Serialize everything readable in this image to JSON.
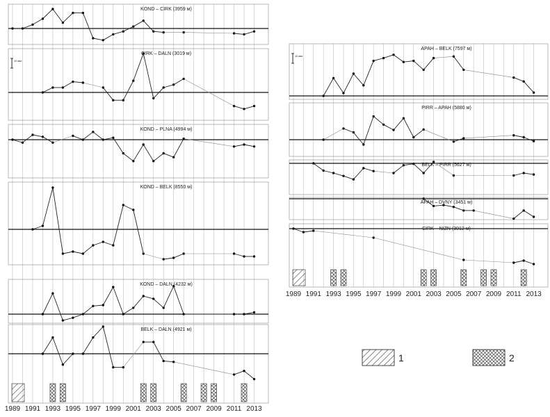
{
  "chart_data": {
    "type": "line",
    "scale_label": "10 мм",
    "left_panels": [
      {
        "title": "KOND – CIRK (3959 м)",
        "values": [
          [
            1989,
            0
          ],
          [
            1990,
            0
          ],
          [
            1991,
            0.4
          ],
          [
            1992,
            1
          ],
          [
            1993,
            2
          ],
          [
            1994,
            0.6
          ],
          [
            1995,
            1.6
          ],
          [
            1996,
            1.6
          ],
          [
            1997,
            -1
          ],
          [
            1998,
            -1.2
          ],
          [
            1999,
            -0.6
          ],
          [
            2000,
            -0.3
          ],
          [
            2001,
            0.2
          ],
          [
            2002,
            0.8
          ],
          [
            2003,
            -0.3
          ],
          [
            2004,
            -0.4
          ],
          [
            2006,
            -0.4
          ],
          [
            2011,
            -0.5
          ],
          [
            2012,
            -0.6
          ],
          [
            2013,
            -0.3
          ]
        ]
      },
      {
        "title": "CIRK – DALN (3019 м)",
        "values": [
          [
            1992,
            0
          ],
          [
            1993,
            0.5
          ],
          [
            1994,
            0.5
          ],
          [
            1995,
            1.1
          ],
          [
            1996,
            1
          ],
          [
            1998,
            0.5
          ],
          [
            1999,
            -0.8
          ],
          [
            2000,
            -0.8
          ],
          [
            2001,
            1.2
          ],
          [
            2002,
            4
          ],
          [
            2003,
            -0.6
          ],
          [
            2004,
            0.5
          ],
          [
            2005,
            0.8
          ],
          [
            2006,
            1.4
          ],
          [
            2011,
            -1.4
          ],
          [
            2012,
            -1.7
          ],
          [
            2013,
            -1.4
          ]
        ]
      },
      {
        "title": "KOND – PLNA (4994 м)",
        "values": [
          [
            1989,
            0
          ],
          [
            1990,
            -0.3
          ],
          [
            1991,
            0.5
          ],
          [
            1992,
            0.3
          ],
          [
            1993,
            -0.3
          ],
          [
            1995,
            0.4
          ],
          [
            1996,
            0
          ],
          [
            1997,
            0.8
          ],
          [
            1998,
            0
          ],
          [
            1999,
            0.2
          ],
          [
            2000,
            -1.4
          ],
          [
            2001,
            -2.2
          ],
          [
            2002,
            -0.5
          ],
          [
            2003,
            -2.2
          ],
          [
            2004,
            -1.4
          ],
          [
            2005,
            -1.8
          ],
          [
            2006,
            0.1
          ],
          [
            2011,
            -0.7
          ],
          [
            2012,
            -0.5
          ],
          [
            2013,
            -0.7
          ]
        ]
      },
      {
        "title": "KOND – BELK (8550 м)",
        "values": [
          [
            1991,
            0
          ],
          [
            1992,
            0.5
          ],
          [
            1993,
            6
          ],
          [
            1994,
            -3.5
          ],
          [
            1995,
            -3.2
          ],
          [
            1996,
            -3.5
          ],
          [
            1997,
            -2.3
          ],
          [
            1998,
            -1.8
          ],
          [
            1999,
            -2.3
          ],
          [
            2000,
            3.5
          ],
          [
            2001,
            2.8
          ],
          [
            2002,
            -3.5
          ],
          [
            2004,
            -4.3
          ],
          [
            2005,
            -4.1
          ],
          [
            2006,
            -3.5
          ],
          [
            2011,
            -3.5
          ],
          [
            2012,
            -3.9
          ],
          [
            2013,
            -3.9
          ]
        ]
      },
      {
        "title": "KOND – DALN (4232 м)",
        "values": [
          [
            1992,
            0
          ],
          [
            1993,
            2.3
          ],
          [
            1994,
            -0.7
          ],
          [
            1995,
            -0.4
          ],
          [
            1996,
            0
          ],
          [
            1997,
            0.9
          ],
          [
            1998,
            1
          ],
          [
            1999,
            3
          ],
          [
            2000,
            0
          ],
          [
            2001,
            0.7
          ],
          [
            2002,
            2
          ],
          [
            2003,
            1.7
          ],
          [
            2004,
            0.7
          ],
          [
            2005,
            3.1
          ],
          [
            2006,
            0
          ],
          [
            2011,
            0
          ],
          [
            2012,
            0
          ],
          [
            2013,
            0.2
          ]
        ]
      },
      {
        "title": "BELK – DALN (4921 м)",
        "values": [
          [
            1992,
            0
          ],
          [
            1993,
            1.8
          ],
          [
            1994,
            -1.2
          ],
          [
            1995,
            0
          ],
          [
            1996,
            0
          ],
          [
            1997,
            1.8
          ],
          [
            1998,
            3
          ],
          [
            1999,
            -1.5
          ],
          [
            2000,
            -1.5
          ],
          [
            2002,
            1.3
          ],
          [
            2003,
            1.3
          ],
          [
            2004,
            -0.8
          ],
          [
            2005,
            -0.9
          ],
          [
            2011,
            -2.3
          ],
          [
            2012,
            -1.9
          ],
          [
            2013,
            -2.8
          ]
        ]
      }
    ],
    "right_panels": [
      {
        "title": "APAH – BELK (7597 м)",
        "values": [
          [
            1992,
            0
          ],
          [
            1993,
            3.2
          ],
          [
            1994,
            0.5
          ],
          [
            1995,
            4
          ],
          [
            1996,
            1.9
          ],
          [
            1997,
            6.3
          ],
          [
            1998,
            6.8
          ],
          [
            1999,
            7.4
          ],
          [
            2000,
            6.1
          ],
          [
            2001,
            6.3
          ],
          [
            2002,
            4.7
          ],
          [
            2003,
            6.8
          ],
          [
            2005,
            7.1
          ],
          [
            2006,
            4.7
          ],
          [
            2011,
            3.3
          ],
          [
            2012,
            2.6
          ],
          [
            2013,
            0.6
          ]
        ]
      },
      {
        "title": "PIRR – APAH (5880 м)",
        "values": [
          [
            1992,
            0
          ],
          [
            1994,
            2.3
          ],
          [
            1995,
            1.5
          ],
          [
            1996,
            -1
          ],
          [
            1997,
            4.8
          ],
          [
            1998,
            3.1
          ],
          [
            1999,
            2
          ],
          [
            2000,
            4.4
          ],
          [
            2001,
            0.5
          ],
          [
            2002,
            2.1
          ],
          [
            2005,
            -0.4
          ],
          [
            2006,
            0.3
          ],
          [
            2011,
            0.9
          ],
          [
            2012,
            0.5
          ],
          [
            2013,
            -0.3
          ]
        ]
      },
      {
        "title": "BELK – PIRR (5627 м)",
        "values": [
          [
            1991,
            0
          ],
          [
            1992,
            -1.5
          ],
          [
            1993,
            -2
          ],
          [
            1994,
            -2.6
          ],
          [
            1995,
            -3.3
          ],
          [
            1996,
            -1
          ],
          [
            1997,
            -1.6
          ],
          [
            1999,
            -2
          ],
          [
            2000,
            -0.4
          ],
          [
            2001,
            -0.1
          ],
          [
            2002,
            -2
          ],
          [
            2003,
            0.3
          ],
          [
            2005,
            -2.5
          ],
          [
            2011,
            -2.5
          ],
          [
            2012,
            -2
          ],
          [
            2013,
            -2.3
          ]
        ]
      },
      {
        "title": "APAH – DVNY (3451 м)",
        "values": [
          [
            2002,
            0
          ],
          [
            2003,
            -0.8
          ],
          [
            2004,
            -0.7
          ],
          [
            2005,
            -0.9
          ],
          [
            2006,
            -1.3
          ],
          [
            2007,
            -1.3
          ],
          [
            2011,
            -2.2
          ],
          [
            2012,
            -1.3
          ],
          [
            2013,
            -2
          ]
        ]
      },
      {
        "title": "CIRK – NIZN (3012 м)",
        "values": [
          [
            1989,
            0
          ],
          [
            1990,
            -0.5
          ],
          [
            1991,
            -0.3
          ],
          [
            1997,
            -1.3
          ],
          [
            2006,
            -4.5
          ],
          [
            2011,
            -4.9
          ],
          [
            2012,
            -4.6
          ],
          [
            2013,
            -5.1
          ]
        ]
      }
    ],
    "event_markers": [
      {
        "type": "1",
        "years": [
          1989
        ]
      },
      {
        "type": "2",
        "years": [
          1993,
          1994,
          2002,
          2003,
          2006,
          2008,
          2009,
          2012
        ]
      }
    ],
    "year_ticks": [
      "1989",
      "1991",
      "1993",
      "1995",
      "1997",
      "1999",
      "2001",
      "2003",
      "2005",
      "2007",
      "2009",
      "2011",
      "2013"
    ],
    "legend": [
      {
        "pattern": "hatch-diagonal",
        "label": "1"
      },
      {
        "pattern": "hatch-cross",
        "label": "2"
      }
    ]
  }
}
